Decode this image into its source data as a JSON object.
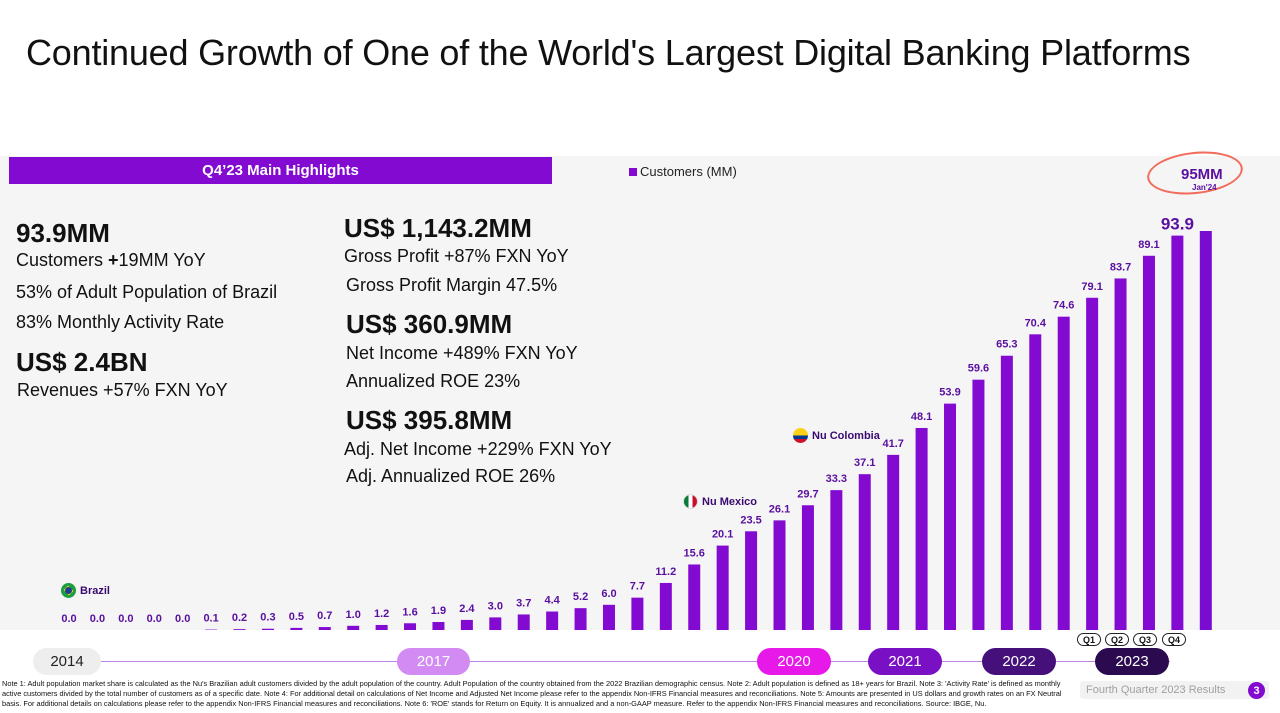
{
  "title": "Continued Growth of One of the World's Largest Digital Banking Platforms",
  "highlights_header": "Q4’23 Main Highlights",
  "kpis": {
    "customers_value": "93.9MM",
    "customers_yoy_prefix": "Customers ",
    "customers_yoy_plus": "+",
    "customers_yoy_rest": "19MM YoY",
    "adult_population": "53% of Adult Population of Brazil",
    "activity_rate": "83% Monthly Activity Rate",
    "revenue_value": "US$ 2.4BN",
    "revenue_growth": "Revenues +57%  FXN YoY",
    "gross_profit_value": "US$ 1,143.2MM",
    "gross_profit_growth": "Gross Profit +87%  FXN YoY",
    "gross_profit_margin": "Gross Profit Margin 47.5%",
    "net_income_value": "US$ 360.9MM",
    "net_income_growth": "Net Income +489% FXN YoY",
    "annualized_roe": "Annualized ROE 23%",
    "adj_net_income_value": "US$ 395.8MM",
    "adj_net_income_growth": "Adj. Net Income +229% FXN YoY",
    "adj_annualized_roe": "Adj. Annualized ROE 26%"
  },
  "callout": {
    "value": "95MM",
    "date": "Jan'24"
  },
  "markers": {
    "brazil": "Brazil",
    "mexico": "Nu Mexico",
    "colombia": "Nu Colombia"
  },
  "timeline": {
    "years": [
      "2014",
      "2017",
      "2020",
      "2021",
      "2022",
      "2023"
    ],
    "quarters": [
      "Q1",
      "Q2",
      "Q3",
      "Q4"
    ]
  },
  "colors": {
    "accent": "#820ad1",
    "pill_2017": "#d28bf2",
    "pill_2020": "#e619e8",
    "pill_2021": "#7a10c4",
    "pill_2022": "#45107a",
    "pill_2023": "#2b0a4f",
    "callout_ring": "#f26b5b"
  },
  "notes": "Note 1: Adult population market share is calculated as the Nu's Brazilian adult customers divided by the adult population of the country. Adult Population of the country obtained from the 2022 Brazilian demographic census. Note 2: Adult population is defined as 18+ years for Brazil. Note 3: 'Activity Rate' is defined as monthly active customers divided by the total number of customers as of a specific date. Note 4: For additional detail on calculations of Net Income and Adjusted Net Income please refer to the appendix Non-IFRS Financial measures and reconciliations. Note 5: Amounts are presented in US dollars and growth rates on an FX Neutral basis. For additional details on calculations please refer to the appendix Non-IFRS Financial measures and reconciliations. Note 6: 'ROE' stands for Return on Equity. It is annualized and a non-GAAP measure. Refer to the appendix Non-IFRS Financial measures and reconciliations. Source: IBGE, Nu.",
  "footer": {
    "label": "Fourth Quarter 2023 Results",
    "page": "3"
  },
  "chart_data": {
    "type": "bar",
    "legend": "Customers (MM)",
    "legend_position": "top-left",
    "grid": false,
    "ylim": [
      0,
      100
    ],
    "series": [
      {
        "name": "Customers (MM)",
        "values": [
          0.0,
          0.0,
          0.0,
          0.0,
          0.0,
          0.1,
          0.2,
          0.3,
          0.5,
          0.7,
          1.0,
          1.2,
          1.6,
          1.9,
          2.4,
          3.0,
          3.7,
          4.4,
          5.2,
          6.0,
          7.7,
          11.2,
          15.6,
          20.1,
          23.5,
          26.1,
          29.7,
          33.3,
          37.1,
          41.7,
          48.1,
          53.9,
          59.6,
          65.3,
          70.4,
          74.6,
          79.1,
          83.7,
          89.1,
          93.9,
          95.0
        ],
        "labels": [
          "0.0",
          "0.0",
          "0.0",
          "0.0",
          "0.0",
          "0.1",
          "0.2",
          "0.3",
          "0.5",
          "0.7",
          "1.0",
          "1.2",
          "1.6",
          "1.9",
          "2.4",
          "3.0",
          "3.7",
          "4.4",
          "5.2",
          "6.0",
          "7.7",
          "11.2",
          "15.6",
          "20.1",
          "23.5",
          "26.1",
          "29.7",
          "33.3",
          "37.1",
          "41.7",
          "48.1",
          "53.9",
          "59.6",
          "65.3",
          "70.4",
          "74.6",
          "79.1",
          "83.7",
          "89.1",
          "93.9",
          ""
        ]
      }
    ]
  }
}
